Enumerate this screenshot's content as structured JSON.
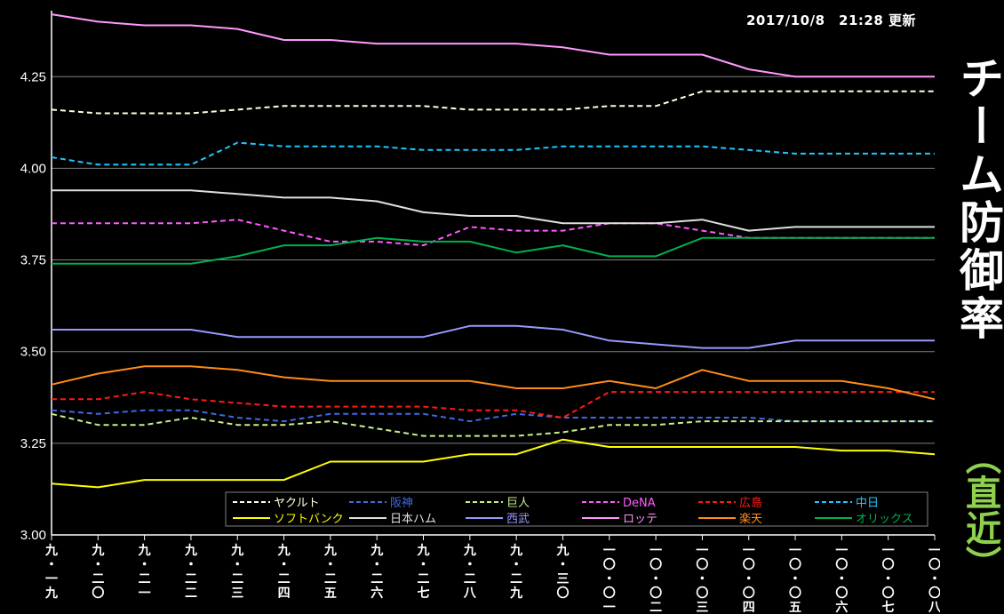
{
  "updated": "2017/10/8　21:28 更新",
  "side_title": "チーム防御率",
  "side_sub": "（直近）",
  "chart_data": {
    "type": "line",
    "title": "",
    "xlabel": "",
    "ylabel": "",
    "ylim": [
      3.0,
      4.43
    ],
    "yticks": [
      3.0,
      3.25,
      3.5,
      3.75,
      4.0,
      4.25
    ],
    "ytick_labels": [
      "3.00",
      "3.25",
      "3.50",
      "3.75",
      "4.00",
      "4.25"
    ],
    "grid": true,
    "legend_placement": "bottom",
    "categories": [
      "九・一九",
      "九・二〇",
      "九・二一",
      "九・二二",
      "九・二三",
      "九・二四",
      "九・二五",
      "九・二六",
      "九・二七",
      "九・二八",
      "九・二九",
      "九・三〇",
      "一〇・〇一",
      "一〇・〇二",
      "一〇・〇三",
      "一〇・〇四",
      "一〇・〇五",
      "一〇・〇六",
      "一〇・〇七",
      "一〇・〇八"
    ],
    "series": [
      {
        "name": "ヤクルト",
        "color": "#ffffe0",
        "dash": true,
        "values": [
          4.16,
          4.15,
          4.15,
          4.15,
          4.16,
          4.17,
          4.17,
          4.17,
          4.17,
          4.16,
          4.16,
          4.16,
          4.17,
          4.17,
          4.21,
          4.21,
          4.21,
          4.21,
          4.21,
          4.21
        ]
      },
      {
        "name": "阪神",
        "color": "#4169e1",
        "dash": true,
        "values": [
          3.34,
          3.33,
          3.34,
          3.34,
          3.32,
          3.31,
          3.33,
          3.33,
          3.33,
          3.31,
          3.33,
          3.32,
          3.32,
          3.32,
          3.32,
          3.32,
          3.31,
          3.31,
          3.31,
          3.31
        ]
      },
      {
        "name": "巨人",
        "color": "#c8f08c",
        "dash": true,
        "values": [
          3.33,
          3.3,
          3.3,
          3.32,
          3.3,
          3.3,
          3.31,
          3.29,
          3.27,
          3.27,
          3.27,
          3.28,
          3.3,
          3.3,
          3.31,
          3.31,
          3.31,
          3.31,
          3.31,
          3.31
        ]
      },
      {
        "name": "DeNA",
        "color": "#ff5cff",
        "dash": true,
        "values": [
          3.85,
          3.85,
          3.85,
          3.85,
          3.86,
          3.83,
          3.8,
          3.8,
          3.79,
          3.84,
          3.83,
          3.83,
          3.85,
          3.85,
          3.83,
          3.81,
          3.81,
          3.81,
          3.81,
          3.81
        ]
      },
      {
        "name": "広島",
        "color": "#ff1a1a",
        "dash": true,
        "values": [
          3.37,
          3.37,
          3.39,
          3.37,
          3.36,
          3.35,
          3.35,
          3.35,
          3.35,
          3.34,
          3.34,
          3.32,
          3.39,
          3.39,
          3.39,
          3.39,
          3.39,
          3.39,
          3.39,
          3.39
        ]
      },
      {
        "name": "中日",
        "color": "#1ec8ff",
        "dash": true,
        "values": [
          4.03,
          4.01,
          4.01,
          4.01,
          4.07,
          4.06,
          4.06,
          4.06,
          4.05,
          4.05,
          4.05,
          4.06,
          4.06,
          4.06,
          4.06,
          4.05,
          4.04,
          4.04,
          4.04,
          4.04
        ]
      },
      {
        "name": "ソフトバンク",
        "color": "#ffff00",
        "dash": false,
        "values": [
          3.14,
          3.13,
          3.15,
          3.15,
          3.15,
          3.15,
          3.2,
          3.2,
          3.2,
          3.22,
          3.22,
          3.26,
          3.24,
          3.24,
          3.24,
          3.24,
          3.24,
          3.23,
          3.23,
          3.22
        ]
      },
      {
        "name": "日本ハム",
        "color": "#e0e0e0",
        "dash": false,
        "values": [
          3.94,
          3.94,
          3.94,
          3.94,
          3.93,
          3.92,
          3.92,
          3.91,
          3.88,
          3.87,
          3.87,
          3.85,
          3.85,
          3.85,
          3.86,
          3.83,
          3.84,
          3.84,
          3.84,
          3.84
        ]
      },
      {
        "name": "西武",
        "color": "#9999ff",
        "dash": false,
        "values": [
          3.56,
          3.56,
          3.56,
          3.56,
          3.54,
          3.54,
          3.54,
          3.54,
          3.54,
          3.57,
          3.57,
          3.56,
          3.53,
          3.52,
          3.51,
          3.51,
          3.53,
          3.53,
          3.53,
          3.53
        ]
      },
      {
        "name": "ロッテ",
        "color": "#ff99ff",
        "dash": false,
        "values": [
          4.42,
          4.4,
          4.39,
          4.39,
          4.38,
          4.35,
          4.35,
          4.34,
          4.34,
          4.34,
          4.34,
          4.33,
          4.31,
          4.31,
          4.31,
          4.27,
          4.25,
          4.25,
          4.25,
          4.25
        ]
      },
      {
        "name": "楽天",
        "color": "#ff8c1a",
        "dash": false,
        "values": [
          3.41,
          3.44,
          3.46,
          3.46,
          3.45,
          3.43,
          3.42,
          3.42,
          3.42,
          3.42,
          3.4,
          3.4,
          3.42,
          3.4,
          3.45,
          3.42,
          3.42,
          3.42,
          3.4,
          3.37
        ]
      },
      {
        "name": "オリックス",
        "color": "#00b050",
        "dash": false,
        "values": [
          3.74,
          3.74,
          3.74,
          3.74,
          3.76,
          3.79,
          3.79,
          3.81,
          3.8,
          3.8,
          3.77,
          3.79,
          3.76,
          3.76,
          3.81,
          3.81,
          3.81,
          3.81,
          3.81,
          3.81
        ]
      }
    ]
  }
}
